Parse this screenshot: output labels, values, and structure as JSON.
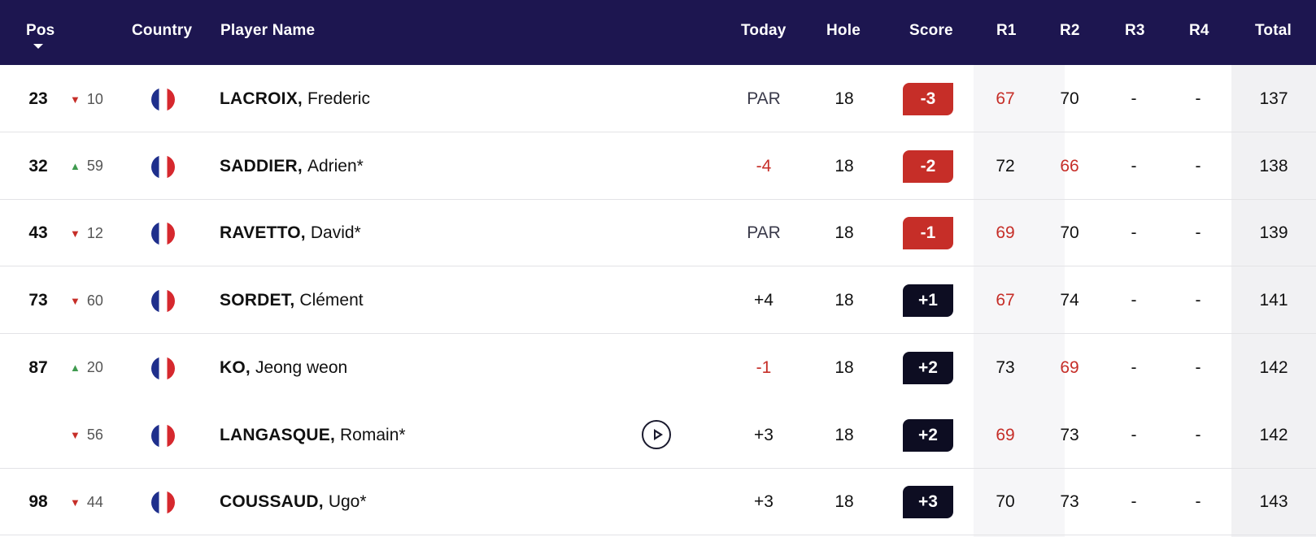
{
  "header": {
    "pos": "Pos",
    "country": "Country",
    "player_name": "Player Name",
    "today": "Today",
    "hole": "Hole",
    "score": "Score",
    "r1": "R1",
    "r2": "R2",
    "r3": "R3",
    "r4": "R4",
    "total": "Total"
  },
  "colors": {
    "header_bg": "#1d1650",
    "under_par": "#c62e28",
    "over_par_badge": "#0d0d22",
    "up_arrow": "#3f9a4f",
    "down_arrow": "#c62e28",
    "par_text": "#3a3a4a"
  },
  "rows": [
    {
      "pos": "23",
      "dir": "down",
      "move": "10",
      "flag": "france-flag-icon",
      "last": "LACROIX,",
      "first": "Frederic",
      "today": "PAR",
      "today_tone": "par",
      "hole": "18",
      "score": "-3",
      "score_tone": "under",
      "r1": "67",
      "r1_tone": "under",
      "r2": "70",
      "r2_tone": "normal",
      "r3": "-",
      "r4": "-",
      "total": "137",
      "has_play": false
    },
    {
      "pos": "32",
      "dir": "up",
      "move": "59",
      "flag": "france-flag-icon",
      "last": "SADDIER,",
      "first": "Adrien*",
      "today": "-4",
      "today_tone": "under",
      "hole": "18",
      "score": "-2",
      "score_tone": "under",
      "r1": "72",
      "r1_tone": "normal",
      "r2": "66",
      "r2_tone": "under",
      "r3": "-",
      "r4": "-",
      "total": "138",
      "has_play": false
    },
    {
      "pos": "43",
      "dir": "down",
      "move": "12",
      "flag": "france-flag-icon",
      "last": "RAVETTO,",
      "first": "David*",
      "today": "PAR",
      "today_tone": "par",
      "hole": "18",
      "score": "-1",
      "score_tone": "under",
      "r1": "69",
      "r1_tone": "under",
      "r2": "70",
      "r2_tone": "normal",
      "r3": "-",
      "r4": "-",
      "total": "139",
      "has_play": false
    },
    {
      "pos": "73",
      "dir": "down",
      "move": "60",
      "flag": "france-flag-icon",
      "last": "SORDET,",
      "first": "Clément",
      "today": "+4",
      "today_tone": "normal",
      "hole": "18",
      "score": "+1",
      "score_tone": "over",
      "r1": "67",
      "r1_tone": "under",
      "r2": "74",
      "r2_tone": "normal",
      "r3": "-",
      "r4": "-",
      "total": "141",
      "has_play": false
    },
    {
      "pos": "87",
      "dir": "up",
      "move": "20",
      "flag": "france-flag-icon",
      "last": "KO,",
      "first": "Jeong weon",
      "today": "-1",
      "today_tone": "under",
      "hole": "18",
      "score": "+2",
      "score_tone": "over",
      "r1": "73",
      "r1_tone": "normal",
      "r2": "69",
      "r2_tone": "under",
      "r3": "-",
      "r4": "-",
      "total": "142",
      "has_play": false
    },
    {
      "pos": "",
      "dir": "down",
      "move": "56",
      "flag": "france-flag-icon",
      "last": "LANGASQUE,",
      "first": "Romain*",
      "today": "+3",
      "today_tone": "normal",
      "hole": "18",
      "score": "+2",
      "score_tone": "over",
      "r1": "69",
      "r1_tone": "under",
      "r2": "73",
      "r2_tone": "normal",
      "r3": "-",
      "r4": "-",
      "total": "142",
      "has_play": true
    },
    {
      "pos": "98",
      "dir": "down",
      "move": "44",
      "flag": "france-flag-icon",
      "last": "COUSSAUD,",
      "first": "Ugo*",
      "today": "+3",
      "today_tone": "normal",
      "hole": "18",
      "score": "+3",
      "score_tone": "over",
      "r1": "70",
      "r1_tone": "normal",
      "r2": "73",
      "r2_tone": "normal",
      "r3": "-",
      "r4": "-",
      "total": "143",
      "has_play": false
    }
  ]
}
